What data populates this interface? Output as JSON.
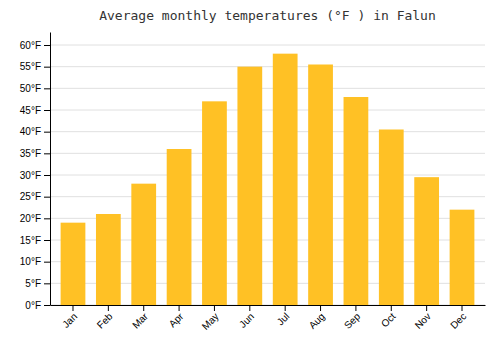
{
  "chart_data": {
    "type": "bar",
    "title": "Average monthly temperatures (°F ) in Falun",
    "categories": [
      "Jan",
      "Feb",
      "Mar",
      "Apr",
      "May",
      "Jun",
      "Jul",
      "Aug",
      "Sep",
      "Oct",
      "Nov",
      "Dec"
    ],
    "values": [
      19,
      21,
      28,
      36,
      47,
      55,
      58,
      55.5,
      48,
      40.5,
      29.5,
      22
    ],
    "color": "#FFC125",
    "ylim": [
      0,
      63
    ],
    "yticks": [
      {
        "value": 0,
        "label": "0°F"
      },
      {
        "value": 5,
        "label": "5°F"
      },
      {
        "value": 10,
        "label": "10°F"
      },
      {
        "value": 15,
        "label": "15°F"
      },
      {
        "value": 20,
        "label": "20°F"
      },
      {
        "value": 25,
        "label": "25°F"
      },
      {
        "value": 30,
        "label": "30°F"
      },
      {
        "value": 35,
        "label": "35°F"
      },
      {
        "value": 40,
        "label": "40°F"
      },
      {
        "value": 45,
        "label": "45°F"
      },
      {
        "value": 50,
        "label": "50°F"
      },
      {
        "value": 55,
        "label": "55°F"
      },
      {
        "value": 60,
        "label": "60°F"
      }
    ],
    "grid": true
  }
}
